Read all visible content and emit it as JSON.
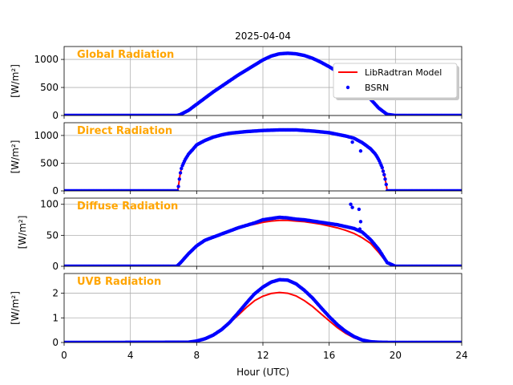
{
  "chart_data": {
    "type": "line",
    "title": "2025-04-04",
    "xlabel": "Hour (UTC)",
    "xlim": [
      0,
      24
    ],
    "xticks": [
      0,
      4,
      8,
      12,
      16,
      20,
      24
    ],
    "grid": true,
    "legend": {
      "placement": "top-right",
      "entries": [
        {
          "name": "LibRadtran Model",
          "color": "#ff0000",
          "style": "line"
        },
        {
          "name": "BSRN",
          "color": "#0000ff",
          "style": "dot"
        }
      ]
    },
    "panels": [
      {
        "name": "Global Radiation",
        "ylabel": "[W/m²]",
        "ylim": [
          0,
          1230
        ],
        "yticks": [
          0,
          500,
          1000
        ],
        "series": [
          {
            "name": "LibRadtran Model",
            "color": "#ff0000",
            "x": [
              0,
              6.9,
              7,
              7.5,
              8,
              8.5,
              9,
              9.5,
              10,
              10.5,
              11,
              11.5,
              12,
              12.5,
              13,
              13.5,
              14,
              14.5,
              15,
              15.5,
              16,
              16.5,
              17,
              17.5,
              18,
              18.5,
              19,
              19.5,
              20,
              24
            ],
            "y": [
              0,
              0,
              10,
              90,
              200,
              310,
              420,
              520,
              620,
              720,
              810,
              900,
              980,
              1050,
              1090,
              1100,
              1090,
              1060,
              1010,
              950,
              870,
              780,
              680,
              560,
              430,
              290,
              130,
              20,
              0,
              0
            ]
          },
          {
            "name": "BSRN",
            "color": "#0000ff",
            "x": [
              0,
              6.8,
              7,
              7.5,
              8,
              8.5,
              9,
              9.5,
              10,
              10.5,
              11,
              11.5,
              12,
              12.5,
              13,
              13.5,
              14,
              14.5,
              15,
              15.5,
              16,
              16.5,
              17,
              17.5,
              18,
              18.5,
              19,
              19.5,
              20,
              24
            ],
            "y": [
              0,
              0,
              15,
              90,
              200,
              310,
              420,
              520,
              620,
              720,
              810,
              900,
              990,
              1060,
              1100,
              1110,
              1100,
              1070,
              1020,
              950,
              870,
              780,
              680,
              560,
              430,
              290,
              130,
              20,
              0,
              0
            ]
          }
        ]
      },
      {
        "name": "Direct Radiation",
        "ylabel": "[W/m²]",
        "ylim": [
          0,
          1230
        ],
        "yticks": [
          0,
          500,
          1000
        ],
        "series": [
          {
            "name": "LibRadtran Model",
            "color": "#ff0000",
            "x": [
              0,
              6.85,
              6.9,
              7,
              7.1,
              7.3,
              7.5,
              7.8,
              8,
              8.5,
              9,
              9.5,
              10,
              11,
              12,
              13,
              14,
              15,
              16,
              17,
              17.5,
              18,
              18.5,
              18.8,
              19,
              19.2,
              19.35,
              19.45,
              19.5,
              24
            ],
            "y": [
              0,
              0,
              80,
              300,
              430,
              560,
              660,
              760,
              830,
              910,
              970,
              1010,
              1040,
              1070,
              1090,
              1100,
              1100,
              1080,
              1050,
              990,
              950,
              870,
              760,
              660,
              560,
              420,
              260,
              100,
              0,
              0
            ]
          },
          {
            "name": "BSRN",
            "color": "#0000ff",
            "x": [
              0,
              6.85,
              6.9,
              7,
              7.1,
              7.3,
              7.5,
              7.8,
              8,
              8.5,
              9,
              9.5,
              10,
              11,
              12,
              13,
              14,
              15,
              16,
              17,
              17.5,
              18,
              18.5,
              18.8,
              19,
              19.2,
              19.35,
              19.45,
              19.5,
              24
            ],
            "y": [
              0,
              0,
              80,
              300,
              430,
              560,
              660,
              760,
              830,
              910,
              970,
              1010,
              1040,
              1070,
              1090,
              1100,
              1100,
              1080,
              1050,
              990,
              950,
              870,
              760,
              660,
              560,
              420,
              260,
              100,
              0,
              0
            ]
          }
        ],
        "outliers": [
          {
            "x": 17.4,
            "y": 880
          },
          {
            "x": 17.9,
            "y": 720
          }
        ]
      },
      {
        "name": "Diffuse Radiation",
        "ylabel": "[W/m²]",
        "ylim": [
          0,
          110
        ],
        "yticks": [
          0,
          50,
          100
        ],
        "series": [
          {
            "name": "LibRadtran Model",
            "color": "#ff0000",
            "x": [
              0,
              6.8,
              7,
              7.5,
              8,
              8.5,
              9,
              9.5,
              10,
              10.5,
              11,
              11.5,
              12,
              12.5,
              13,
              13.5,
              14,
              14.5,
              15,
              15.5,
              16,
              16.5,
              17,
              17.5,
              18,
              18.5,
              19,
              19.5,
              20,
              24
            ],
            "y": [
              0,
              0,
              5,
              20,
              33,
              42,
              48,
              53,
              57,
              61,
              65,
              68,
              71,
              73,
              74,
              74,
              73,
              72,
              70,
              68,
              65,
              62,
              58,
              53,
              46,
              37,
              22,
              5,
              0,
              0
            ]
          },
          {
            "name": "BSRN",
            "color": "#0000ff",
            "x": [
              0,
              6.8,
              7,
              7.5,
              8,
              8.5,
              9,
              9.5,
              10,
              10.5,
              11,
              11.5,
              12,
              12.5,
              13,
              13.5,
              14,
              14.5,
              15,
              15.5,
              16,
              16.5,
              17,
              17.5,
              18,
              18.5,
              19,
              19.5,
              20,
              24
            ],
            "y": [
              0,
              0,
              5,
              20,
              33,
              42,
              47,
              52,
              57,
              62,
              66,
              70,
              75,
              77,
              79,
              78,
              76,
              75,
              73,
              71,
              69,
              67,
              64,
              61,
              55,
              43,
              27,
              6,
              0,
              0
            ]
          }
        ],
        "outliers": [
          {
            "x": 17.3,
            "y": 100
          },
          {
            "x": 17.4,
            "y": 95
          },
          {
            "x": 17.8,
            "y": 92
          },
          {
            "x": 17.9,
            "y": 72
          },
          {
            "x": 17.85,
            "y": 60
          }
        ]
      },
      {
        "name": "UVB Radiation",
        "ylabel": "[W/m²]",
        "ylim": [
          0,
          2.8
        ],
        "yticks": [
          0,
          1,
          2
        ],
        "series": [
          {
            "name": "LibRadtran Model",
            "color": "#ff0000",
            "x": [
              0,
              7.5,
              8,
              8.5,
              9,
              9.5,
              10,
              10.5,
              11,
              11.5,
              12,
              12.5,
              13,
              13.5,
              14,
              14.5,
              15,
              15.5,
              16,
              16.5,
              17,
              17.5,
              18,
              18.5,
              19,
              20,
              24
            ],
            "y": [
              0,
              0.01,
              0.06,
              0.15,
              0.3,
              0.52,
              0.8,
              1.1,
              1.42,
              1.7,
              1.88,
              1.99,
              2.03,
              2.0,
              1.89,
              1.7,
              1.46,
              1.17,
              0.88,
              0.6,
              0.37,
              0.19,
              0.08,
              0.03,
              0.01,
              0,
              0
            ]
          },
          {
            "name": "BSRN",
            "color": "#0000ff",
            "x": [
              0,
              7.5,
              8,
              8.5,
              9,
              9.5,
              10,
              10.5,
              11,
              11.5,
              12,
              12.5,
              13,
              13.5,
              14,
              14.5,
              15,
              15.5,
              16,
              16.5,
              17,
              17.5,
              18,
              18.5,
              19,
              20,
              24
            ],
            "y": [
              0,
              0.01,
              0.06,
              0.15,
              0.3,
              0.52,
              0.82,
              1.2,
              1.6,
              1.98,
              2.25,
              2.45,
              2.55,
              2.53,
              2.38,
              2.12,
              1.8,
              1.42,
              1.05,
              0.72,
              0.45,
              0.24,
              0.1,
              0.03,
              0.01,
              0,
              0
            ]
          }
        ]
      }
    ]
  }
}
